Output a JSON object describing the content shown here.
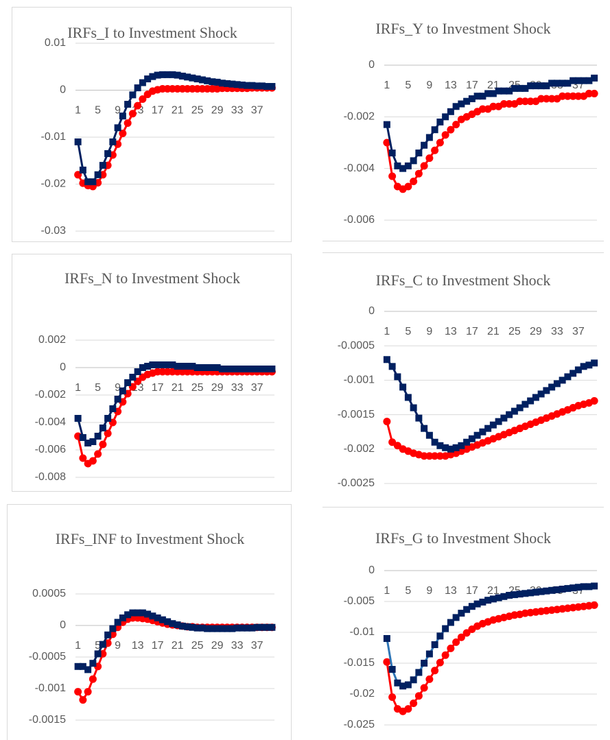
{
  "chart_data": [
    {
      "type": "line",
      "title": "IRFs_I to Investment Shock",
      "categories": [
        1,
        null,
        null,
        null,
        5,
        null,
        null,
        null,
        9,
        null,
        null,
        null,
        13,
        null,
        null,
        null,
        17,
        null,
        null,
        null,
        21,
        null,
        null,
        null,
        25,
        null,
        null,
        null,
        29,
        null,
        null,
        null,
        33,
        null,
        null,
        null,
        37,
        null,
        null,
        null
      ],
      "ylim": [
        -0.03,
        0.01
      ],
      "yticks": [
        -0.03,
        -0.02,
        -0.01,
        0,
        0.01
      ],
      "grid": true,
      "series": [
        {
          "color": "#ff0000",
          "marker": "circle",
          "values": [
            -0.018,
            -0.0198,
            -0.0203,
            -0.0205,
            -0.0197,
            -0.018,
            -0.016,
            -0.0138,
            -0.0115,
            -0.0092,
            -0.007,
            -0.005,
            -0.0033,
            -0.0019,
            -0.0009,
            -0.0002,
            0.0001,
            0.0003,
            0.0003,
            0.0003,
            0.0003,
            0.0003,
            0.0003,
            0.0003,
            0.0003,
            0.0003,
            0.0003,
            0.0003,
            0.0003,
            0.0004,
            0.0004,
            0.0004,
            0.0004,
            0.0004,
            0.0004,
            0.0005,
            0.0005,
            0.0005,
            0.0005,
            0.0005
          ]
        },
        {
          "color": "#002060",
          "marker": "square",
          "values": [
            -0.011,
            -0.017,
            -0.0195,
            -0.0195,
            -0.018,
            -0.016,
            -0.0135,
            -0.011,
            -0.008,
            -0.0055,
            -0.003,
            -0.001,
            0.0005,
            0.0016,
            0.0024,
            0.0029,
            0.0032,
            0.0033,
            0.0033,
            0.0033,
            0.0032,
            0.003,
            0.0028,
            0.0026,
            0.0024,
            0.0022,
            0.002,
            0.0018,
            0.0017,
            0.0015,
            0.0014,
            0.0013,
            0.0012,
            0.0011,
            0.001,
            0.001,
            0.0009,
            0.0009,
            0.0008,
            0.0008
          ]
        }
      ]
    },
    {
      "type": "line",
      "title": "IRFs_Y to Investment Shock",
      "categories": [
        1,
        null,
        null,
        null,
        5,
        null,
        null,
        null,
        9,
        null,
        null,
        null,
        13,
        null,
        null,
        null,
        17,
        null,
        null,
        null,
        21,
        null,
        null,
        null,
        25,
        null,
        null,
        null,
        29,
        null,
        null,
        null,
        33,
        null,
        null,
        null,
        37,
        null,
        null,
        null
      ],
      "ylim": [
        -0.006,
        0
      ],
      "yticks": [
        -0.006,
        -0.004,
        -0.002,
        0
      ],
      "grid": true,
      "series": [
        {
          "color": "#ff0000",
          "marker": "circle",
          "values": [
            -0.003,
            -0.0043,
            -0.0047,
            -0.0048,
            -0.0047,
            -0.0045,
            -0.0042,
            -0.0039,
            -0.0036,
            -0.0033,
            -0.003,
            -0.0027,
            -0.0025,
            -0.0023,
            -0.0021,
            -0.002,
            -0.0019,
            -0.0018,
            -0.0017,
            -0.0017,
            -0.0016,
            -0.0016,
            -0.0015,
            -0.0015,
            -0.0015,
            -0.0014,
            -0.0014,
            -0.0014,
            -0.0014,
            -0.0013,
            -0.0013,
            -0.0013,
            -0.0013,
            -0.0012,
            -0.0012,
            -0.0012,
            -0.0012,
            -0.0012,
            -0.0011,
            -0.0011
          ]
        },
        {
          "color": "#002060",
          "marker": "square",
          "values": [
            -0.0023,
            -0.0034,
            -0.0039,
            -0.004,
            -0.0039,
            -0.0037,
            -0.0034,
            -0.0031,
            -0.0028,
            -0.0025,
            -0.0022,
            -0.002,
            -0.0018,
            -0.0016,
            -0.0015,
            -0.0014,
            -0.0013,
            -0.0012,
            -0.0012,
            -0.0011,
            -0.0011,
            -0.001,
            -0.001,
            -0.001,
            -0.0009,
            -0.0009,
            -0.0009,
            -0.0008,
            -0.0008,
            -0.0008,
            -0.0008,
            -0.0007,
            -0.0007,
            -0.0007,
            -0.0007,
            -0.0006,
            -0.0006,
            -0.0006,
            -0.0006,
            -0.0005
          ]
        }
      ]
    },
    {
      "type": "line",
      "title": "IRFs_N to Investment Shock",
      "categories": [
        1,
        null,
        null,
        null,
        5,
        null,
        null,
        null,
        9,
        null,
        null,
        null,
        13,
        null,
        null,
        null,
        17,
        null,
        null,
        null,
        21,
        null,
        null,
        null,
        25,
        null,
        null,
        null,
        29,
        null,
        null,
        null,
        33,
        null,
        null,
        null,
        37,
        null,
        null,
        null
      ],
      "ylim": [
        -0.008,
        0.002
      ],
      "yticks": [
        -0.008,
        -0.006,
        -0.004,
        -0.002,
        0,
        0.002
      ],
      "grid": true,
      "series": [
        {
          "color": "#ff0000",
          "marker": "circle",
          "values": [
            -0.005,
            -0.0066,
            -0.007,
            -0.0068,
            -0.0063,
            -0.0056,
            -0.0048,
            -0.004,
            -0.0032,
            -0.0025,
            -0.0019,
            -0.0014,
            -0.001,
            -0.0007,
            -0.0005,
            -0.0004,
            -0.0003,
            -0.0003,
            -0.0003,
            -0.0003,
            -0.0003,
            -0.0003,
            -0.0003,
            -0.0003,
            -0.0003,
            -0.0003,
            -0.0003,
            -0.0003,
            -0.0003,
            -0.0003,
            -0.0003,
            -0.0003,
            -0.0003,
            -0.0003,
            -0.0003,
            -0.0003,
            -0.0003,
            -0.0003,
            -0.0003,
            -0.0003
          ]
        },
        {
          "color": "#002060",
          "marker": "square",
          "values": [
            -0.0037,
            -0.0051,
            -0.0055,
            -0.0054,
            -0.005,
            -0.0044,
            -0.0037,
            -0.003,
            -0.0023,
            -0.0017,
            -0.0011,
            -0.0007,
            -0.0003,
            0,
            0.0001,
            0.0002,
            0.0002,
            0.0002,
            0.0002,
            0.0002,
            0.0001,
            0.0001,
            0.0001,
            0.0001,
            0,
            0,
            0,
            0,
            0,
            -0.0001,
            -0.0001,
            -0.0001,
            -0.0001,
            -0.0001,
            -0.0001,
            -0.0001,
            -0.0001,
            -0.0001,
            -0.0001,
            -0.0001
          ]
        }
      ]
    },
    {
      "type": "line",
      "title": "IRFs_C to Investment Shock",
      "categories": [
        1,
        null,
        null,
        null,
        5,
        null,
        null,
        null,
        9,
        null,
        null,
        null,
        13,
        null,
        null,
        null,
        17,
        null,
        null,
        null,
        21,
        null,
        null,
        null,
        25,
        null,
        null,
        null,
        29,
        null,
        null,
        null,
        33,
        null,
        null,
        null,
        37,
        null,
        null,
        null
      ],
      "ylim": [
        -0.0025,
        0
      ],
      "yticks": [
        -0.0025,
        -0.002,
        -0.0015,
        -0.001,
        -0.0005,
        0
      ],
      "grid": true,
      "series": [
        {
          "color": "#ff0000",
          "marker": "circle",
          "values": [
            -0.0016,
            -0.0019,
            -0.00195,
            -0.002,
            -0.00203,
            -0.00206,
            -0.00208,
            -0.0021,
            -0.0021,
            -0.0021,
            -0.0021,
            -0.0021,
            -0.00208,
            -0.00206,
            -0.00203,
            -0.002,
            -0.00197,
            -0.00194,
            -0.00191,
            -0.00188,
            -0.00185,
            -0.00182,
            -0.00179,
            -0.00176,
            -0.00173,
            -0.0017,
            -0.00167,
            -0.00164,
            -0.00161,
            -0.00158,
            -0.00155,
            -0.00152,
            -0.00149,
            -0.00146,
            -0.00143,
            -0.0014,
            -0.00137,
            -0.00135,
            -0.00133,
            -0.0013
          ]
        },
        {
          "color": "#002060",
          "marker": "square",
          "values": [
            -0.0007,
            -0.0008,
            -0.00095,
            -0.0011,
            -0.00125,
            -0.0014,
            -0.00155,
            -0.0017,
            -0.0018,
            -0.0019,
            -0.00195,
            -0.00198,
            -0.002,
            -0.00198,
            -0.00195,
            -0.0019,
            -0.00185,
            -0.0018,
            -0.00175,
            -0.0017,
            -0.00165,
            -0.0016,
            -0.00155,
            -0.0015,
            -0.00145,
            -0.0014,
            -0.00135,
            -0.0013,
            -0.00125,
            -0.0012,
            -0.00115,
            -0.0011,
            -0.00105,
            -0.001,
            -0.00095,
            -0.0009,
            -0.00085,
            -0.0008,
            -0.00078,
            -0.00075
          ]
        }
      ]
    },
    {
      "type": "line",
      "title": "IRFs_INF to Investment Shock",
      "categories": [
        1,
        null,
        null,
        null,
        5,
        null,
        null,
        null,
        9,
        null,
        null,
        null,
        13,
        null,
        null,
        null,
        17,
        null,
        null,
        null,
        21,
        null,
        null,
        null,
        25,
        null,
        null,
        null,
        29,
        null,
        null,
        null,
        33,
        null,
        null,
        null,
        37,
        null,
        null,
        null
      ],
      "ylim": [
        -0.0015,
        0.0005
      ],
      "yticks": [
        -0.0015,
        -0.001,
        -0.0005,
        0,
        0.0005
      ],
      "grid": true,
      "series": [
        {
          "color": "#ff0000",
          "marker": "circle",
          "values": [
            -0.00105,
            -0.00118,
            -0.00105,
            -0.00085,
            -0.00065,
            -0.00045,
            -0.00028,
            -0.00014,
            -3e-05,
            5e-05,
            0.0001,
            0.00012,
            0.00012,
            0.00011,
            0.0001,
            8e-05,
            6e-05,
            4e-05,
            2e-05,
            1e-05,
            0,
            -1e-05,
            -2e-05,
            -2e-05,
            -3e-05,
            -3e-05,
            -3e-05,
            -3e-05,
            -3e-05,
            -3e-05,
            -3e-05,
            -3e-05,
            -3e-05,
            -3e-05,
            -3e-05,
            -3e-05,
            -3e-05,
            -3e-05,
            -3e-05,
            -3e-05
          ]
        },
        {
          "color": "#002060",
          "marker": "square",
          "values": [
            -0.00065,
            -0.00065,
            -0.0007,
            -0.0006,
            -0.00045,
            -0.0003,
            -0.00015,
            -5e-05,
            5e-05,
            0.00012,
            0.00017,
            0.0002,
            0.0002,
            0.0002,
            0.00018,
            0.00015,
            0.00012,
            9e-05,
            6e-05,
            3e-05,
            1e-05,
            -1e-05,
            -2e-05,
            -3e-05,
            -4e-05,
            -4e-05,
            -5e-05,
            -5e-05,
            -5e-05,
            -5e-05,
            -5e-05,
            -5e-05,
            -4e-05,
            -4e-05,
            -4e-05,
            -4e-05,
            -3e-05,
            -3e-05,
            -3e-05,
            -3e-05
          ]
        }
      ]
    },
    {
      "type": "line",
      "title": "IRFs_G to Investment Shock",
      "categories": [
        1,
        null,
        null,
        null,
        5,
        null,
        null,
        null,
        9,
        null,
        null,
        null,
        13,
        null,
        null,
        null,
        17,
        null,
        null,
        null,
        21,
        null,
        null,
        null,
        25,
        null,
        null,
        null,
        29,
        null,
        null,
        null,
        33,
        null,
        null,
        null,
        37,
        null,
        null,
        null
      ],
      "ylim": [
        -0.025,
        0
      ],
      "yticks": [
        -0.025,
        -0.02,
        -0.015,
        -0.01,
        -0.005,
        0
      ],
      "grid": true,
      "series": [
        {
          "color": "#ff0000",
          "marker": "circle",
          "values": [
            -0.0148,
            -0.0205,
            -0.0224,
            -0.0228,
            -0.0224,
            -0.0215,
            -0.0203,
            -0.019,
            -0.0176,
            -0.0162,
            -0.0149,
            -0.0137,
            -0.0126,
            -0.0116,
            -0.0108,
            -0.0101,
            -0.0095,
            -0.009,
            -0.0086,
            -0.0083,
            -0.008,
            -0.0078,
            -0.0076,
            -0.0074,
            -0.0072,
            -0.0071,
            -0.0069,
            -0.0068,
            -0.0067,
            -0.0066,
            -0.0065,
            -0.0064,
            -0.0063,
            -0.0062,
            -0.0061,
            -0.006,
            -0.0059,
            -0.0058,
            -0.0057,
            -0.0056
          ]
        },
        {
          "color": "#002060",
          "line_color": "#2e75b6",
          "marker": "square",
          "values": [
            -0.011,
            -0.016,
            -0.0182,
            -0.0187,
            -0.0185,
            -0.0177,
            -0.0165,
            -0.015,
            -0.0135,
            -0.012,
            -0.0106,
            -0.0094,
            -0.0084,
            -0.0076,
            -0.0069,
            -0.0063,
            -0.0058,
            -0.0054,
            -0.0051,
            -0.0048,
            -0.0046,
            -0.0044,
            -0.0042,
            -0.004,
            -0.0039,
            -0.0038,
            -0.0037,
            -0.0036,
            -0.0035,
            -0.0034,
            -0.0033,
            -0.0032,
            -0.0031,
            -0.003,
            -0.0029,
            -0.0028,
            -0.0027,
            -0.0026,
            -0.0026,
            -0.0025
          ]
        }
      ]
    }
  ]
}
